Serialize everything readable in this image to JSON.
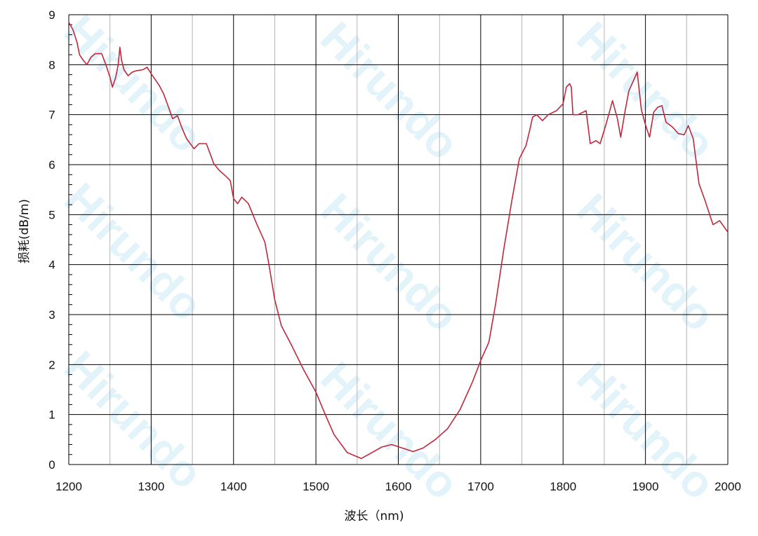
{
  "watermark": "Hirundo",
  "colors": {
    "line": "#c0283c",
    "major_grid": "#000000",
    "minor_grid": "#b4b4b4",
    "watermark": "#bfe6f5"
  },
  "chart_data": {
    "type": "line",
    "title": "",
    "xlabel": "波长（nm)",
    "ylabel": "损耗(dB/m)",
    "xlim": [
      1200,
      2000
    ],
    "ylim": [
      0,
      9
    ],
    "xticks": [
      1200,
      1300,
      1400,
      1500,
      1600,
      1700,
      1800,
      1900,
      2000
    ],
    "yticks": [
      0,
      1,
      2,
      3,
      4,
      5,
      6,
      7,
      8,
      9
    ],
    "grid": true,
    "legend": "none",
    "series": [
      {
        "points": [
          [
            1200,
            8.85
          ],
          [
            1205,
            8.7
          ],
          [
            1210,
            8.45
          ],
          [
            1213,
            8.2
          ],
          [
            1217,
            8.1
          ],
          [
            1222,
            8.0
          ],
          [
            1227,
            8.15
          ],
          [
            1232,
            8.22
          ],
          [
            1240,
            8.22
          ],
          [
            1245,
            8.0
          ],
          [
            1250,
            7.75
          ],
          [
            1253,
            7.55
          ],
          [
            1257,
            7.75
          ],
          [
            1260,
            8.0
          ],
          [
            1262,
            8.35
          ],
          [
            1264,
            8.1
          ],
          [
            1267,
            7.9
          ],
          [
            1272,
            7.78
          ],
          [
            1277,
            7.85
          ],
          [
            1282,
            7.88
          ],
          [
            1290,
            7.9
          ],
          [
            1295,
            7.95
          ],
          [
            1300,
            7.82
          ],
          [
            1305,
            7.7
          ],
          [
            1310,
            7.58
          ],
          [
            1315,
            7.42
          ],
          [
            1320,
            7.2
          ],
          [
            1326,
            6.92
          ],
          [
            1332,
            6.98
          ],
          [
            1337,
            6.75
          ],
          [
            1343,
            6.52
          ],
          [
            1352,
            6.32
          ],
          [
            1358,
            6.42
          ],
          [
            1367,
            6.42
          ],
          [
            1372,
            6.2
          ],
          [
            1376,
            6.02
          ],
          [
            1383,
            5.88
          ],
          [
            1390,
            5.78
          ],
          [
            1396,
            5.68
          ],
          [
            1400,
            5.32
          ],
          [
            1405,
            5.22
          ],
          [
            1410,
            5.35
          ],
          [
            1418,
            5.22
          ],
          [
            1428,
            4.82
          ],
          [
            1438,
            4.45
          ],
          [
            1443,
            4.0
          ],
          [
            1450,
            3.3
          ],
          [
            1458,
            2.78
          ],
          [
            1470,
            2.4
          ],
          [
            1485,
            1.9
          ],
          [
            1500,
            1.45
          ],
          [
            1510,
            1.05
          ],
          [
            1522,
            0.6
          ],
          [
            1538,
            0.24
          ],
          [
            1555,
            0.12
          ],
          [
            1568,
            0.24
          ],
          [
            1580,
            0.35
          ],
          [
            1592,
            0.4
          ],
          [
            1605,
            0.33
          ],
          [
            1618,
            0.26
          ],
          [
            1630,
            0.33
          ],
          [
            1645,
            0.5
          ],
          [
            1660,
            0.72
          ],
          [
            1675,
            1.1
          ],
          [
            1690,
            1.65
          ],
          [
            1700,
            2.08
          ],
          [
            1710,
            2.45
          ],
          [
            1718,
            3.2
          ],
          [
            1728,
            4.3
          ],
          [
            1738,
            5.3
          ],
          [
            1747,
            6.12
          ],
          [
            1755,
            6.38
          ],
          [
            1760,
            6.72
          ],
          [
            1763,
            6.95
          ],
          [
            1768,
            7.0
          ],
          [
            1775,
            6.88
          ],
          [
            1782,
            7.0
          ],
          [
            1792,
            7.08
          ],
          [
            1800,
            7.22
          ],
          [
            1804,
            7.55
          ],
          [
            1808,
            7.62
          ],
          [
            1810,
            7.55
          ],
          [
            1812,
            7.0
          ],
          [
            1818,
            7.0
          ],
          [
            1828,
            7.08
          ],
          [
            1833,
            6.42
          ],
          [
            1840,
            6.48
          ],
          [
            1845,
            6.42
          ],
          [
            1852,
            6.8
          ],
          [
            1860,
            7.28
          ],
          [
            1866,
            6.92
          ],
          [
            1870,
            6.55
          ],
          [
            1875,
            7.05
          ],
          [
            1880,
            7.48
          ],
          [
            1886,
            7.7
          ],
          [
            1890,
            7.85
          ],
          [
            1895,
            7.1
          ],
          [
            1900,
            6.8
          ],
          [
            1905,
            6.55
          ],
          [
            1910,
            7.05
          ],
          [
            1915,
            7.15
          ],
          [
            1920,
            7.18
          ],
          [
            1925,
            6.85
          ],
          [
            1933,
            6.75
          ],
          [
            1940,
            6.62
          ],
          [
            1947,
            6.6
          ],
          [
            1952,
            6.78
          ],
          [
            1958,
            6.52
          ],
          [
            1965,
            5.62
          ],
          [
            1972,
            5.3
          ],
          [
            1982,
            4.8
          ],
          [
            1990,
            4.88
          ],
          [
            2000,
            4.65
          ]
        ]
      }
    ]
  }
}
